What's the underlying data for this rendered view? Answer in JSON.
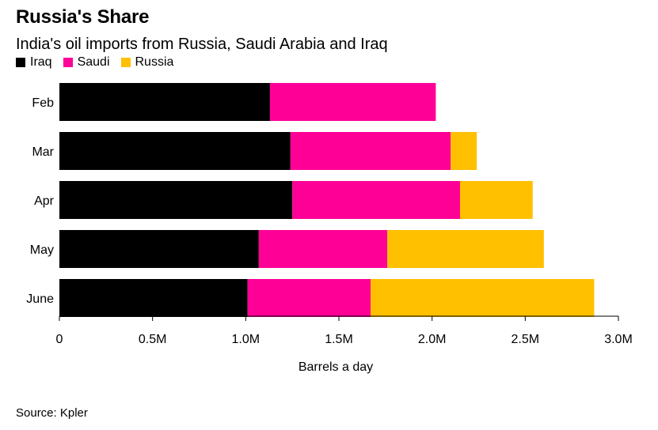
{
  "header": {
    "title": "Russia's Share",
    "subtitle": "India's oil imports from Russia, Saudi Arabia and Iraq"
  },
  "legend": [
    {
      "label": "Iraq",
      "color": "#000000"
    },
    {
      "label": "Saudi",
      "color": "#ff0097"
    },
    {
      "label": "Russia",
      "color": "#ffc000"
    }
  ],
  "chart_data": {
    "type": "bar",
    "orientation": "horizontal",
    "stacked": true,
    "categories": [
      "Feb",
      "Mar",
      "Apr",
      "May",
      "June"
    ],
    "series": [
      {
        "name": "Iraq",
        "color": "#000000",
        "values": [
          1.13,
          1.24,
          1.25,
          1.07,
          1.01
        ]
      },
      {
        "name": "Saudi",
        "color": "#ff0097",
        "values": [
          0.89,
          0.86,
          0.9,
          0.69,
          0.66
        ]
      },
      {
        "name": "Russia",
        "color": "#ffc000",
        "values": [
          0.0,
          0.14,
          0.39,
          0.84,
          1.2
        ]
      }
    ],
    "xlim": [
      0,
      3.0
    ],
    "xticks": [
      0,
      0.5,
      1.0,
      1.5,
      2.0,
      2.5,
      3.0
    ],
    "xtick_labels": [
      "0",
      "0.5M",
      "1.0M",
      "1.5M",
      "2.0M",
      "2.5M",
      "3.0M"
    ],
    "xlabel": "Barrels a day",
    "ylabel": "",
    "legend_position": "top-left",
    "grid": false
  },
  "footer": {
    "source": "Source: Kpler"
  }
}
